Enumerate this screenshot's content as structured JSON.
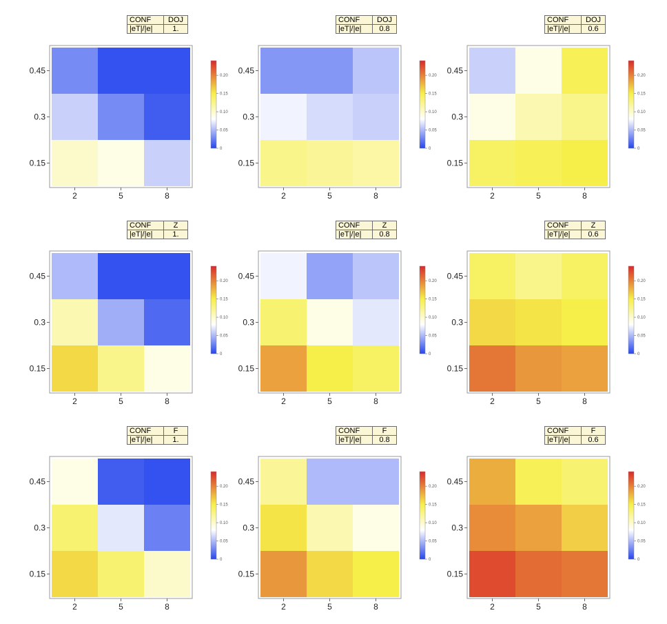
{
  "chart_data": [
    {
      "type": "heatmap",
      "config": "DOJ",
      "ratio": "1.",
      "conf_label": "CONF",
      "ratio_label": "|eT|/|e|",
      "xticks": [
        "2",
        "5",
        "8"
      ],
      "yticks": [
        "0.15",
        "0.3",
        "0.45"
      ],
      "values": [
        [
          0.1,
          0.09,
          0.06
        ],
        [
          0.06,
          0.03,
          0.01
        ],
        [
          0.03,
          0.005,
          0.005
        ]
      ]
    },
    {
      "type": "heatmap",
      "config": "DOJ",
      "ratio": "0.8",
      "conf_label": "CONF",
      "ratio_label": "|eT|/|e|",
      "xticks": [
        "2",
        "5",
        "8"
      ],
      "yticks": [
        "0.15",
        "0.3",
        "0.45"
      ],
      "values": [
        [
          0.125,
          0.12,
          0.115
        ],
        [
          0.075,
          0.065,
          0.06
        ],
        [
          0.035,
          0.035,
          0.055
        ]
      ]
    },
    {
      "type": "heatmap",
      "config": "DOJ",
      "ratio": "0.6",
      "conf_label": "CONF",
      "ratio_label": "|eT|/|e|",
      "xticks": [
        "2",
        "5",
        "8"
      ],
      "yticks": [
        "0.15",
        "0.3",
        "0.45"
      ],
      "values": [
        [
          0.14,
          0.145,
          0.15
        ],
        [
          0.09,
          0.11,
          0.125
        ],
        [
          0.06,
          0.09,
          0.145
        ]
      ]
    },
    {
      "type": "heatmap",
      "config": "Z",
      "ratio": "1.",
      "conf_label": "CONF",
      "ratio_label": "|eT|/|e|",
      "xticks": [
        "2",
        "5",
        "8"
      ],
      "yticks": [
        "0.15",
        "0.3",
        "0.45"
      ],
      "values": [
        [
          0.16,
          0.125,
          0.09
        ],
        [
          0.11,
          0.045,
          0.015
        ],
        [
          0.05,
          0.005,
          0.005
        ]
      ]
    },
    {
      "type": "heatmap",
      "config": "Z",
      "ratio": "0.8",
      "conf_label": "CONF",
      "ratio_label": "|eT|/|e|",
      "xticks": [
        "2",
        "5",
        "8"
      ],
      "yticks": [
        "0.15",
        "0.3",
        "0.45"
      ],
      "values": [
        [
          0.185,
          0.15,
          0.14
        ],
        [
          0.135,
          0.09,
          0.07
        ],
        [
          0.075,
          0.04,
          0.055
        ]
      ]
    },
    {
      "type": "heatmap",
      "config": "Z",
      "ratio": "0.6",
      "conf_label": "CONF",
      "ratio_label": "|eT|/|e|",
      "xticks": [
        "2",
        "5",
        "8"
      ],
      "yticks": [
        "0.15",
        "0.3",
        "0.45"
      ],
      "values": [
        [
          0.205,
          0.19,
          0.185
        ],
        [
          0.16,
          0.155,
          0.15
        ],
        [
          0.14,
          0.125,
          0.14
        ]
      ]
    },
    {
      "type": "heatmap",
      "config": "F",
      "ratio": "1.",
      "conf_label": "CONF",
      "ratio_label": "|eT|/|e|",
      "xticks": [
        "2",
        "5",
        "8"
      ],
      "yticks": [
        "0.15",
        "0.3",
        "0.45"
      ],
      "values": [
        [
          0.16,
          0.135,
          0.1
        ],
        [
          0.135,
          0.07,
          0.025
        ],
        [
          0.09,
          0.01,
          0.005
        ]
      ]
    },
    {
      "type": "heatmap",
      "config": "F",
      "ratio": "0.8",
      "conf_label": "CONF",
      "ratio_label": "|eT|/|e|",
      "xticks": [
        "2",
        "5",
        "8"
      ],
      "yticks": [
        "0.15",
        "0.3",
        "0.45"
      ],
      "values": [
        [
          0.19,
          0.16,
          0.15
        ],
        [
          0.155,
          0.11,
          0.09
        ],
        [
          0.12,
          0.05,
          0.05
        ]
      ]
    },
    {
      "type": "heatmap",
      "config": "F",
      "ratio": "0.6",
      "conf_label": "CONF",
      "ratio_label": "|eT|/|e|",
      "xticks": [
        "2",
        "5",
        "8"
      ],
      "yticks": [
        "0.15",
        "0.3",
        "0.45"
      ],
      "values": [
        [
          0.225,
          0.21,
          0.205
        ],
        [
          0.195,
          0.185,
          0.165
        ],
        [
          0.18,
          0.145,
          0.135
        ]
      ]
    }
  ],
  "colorbar": {
    "min": 0,
    "max": 0.24,
    "ticks": [
      "0",
      "0.05",
      "0.10",
      "0.15",
      "0.20"
    ],
    "colors": [
      "#2646ee",
      "#ffffff",
      "#f6ef4a",
      "#d92a2a"
    ]
  }
}
